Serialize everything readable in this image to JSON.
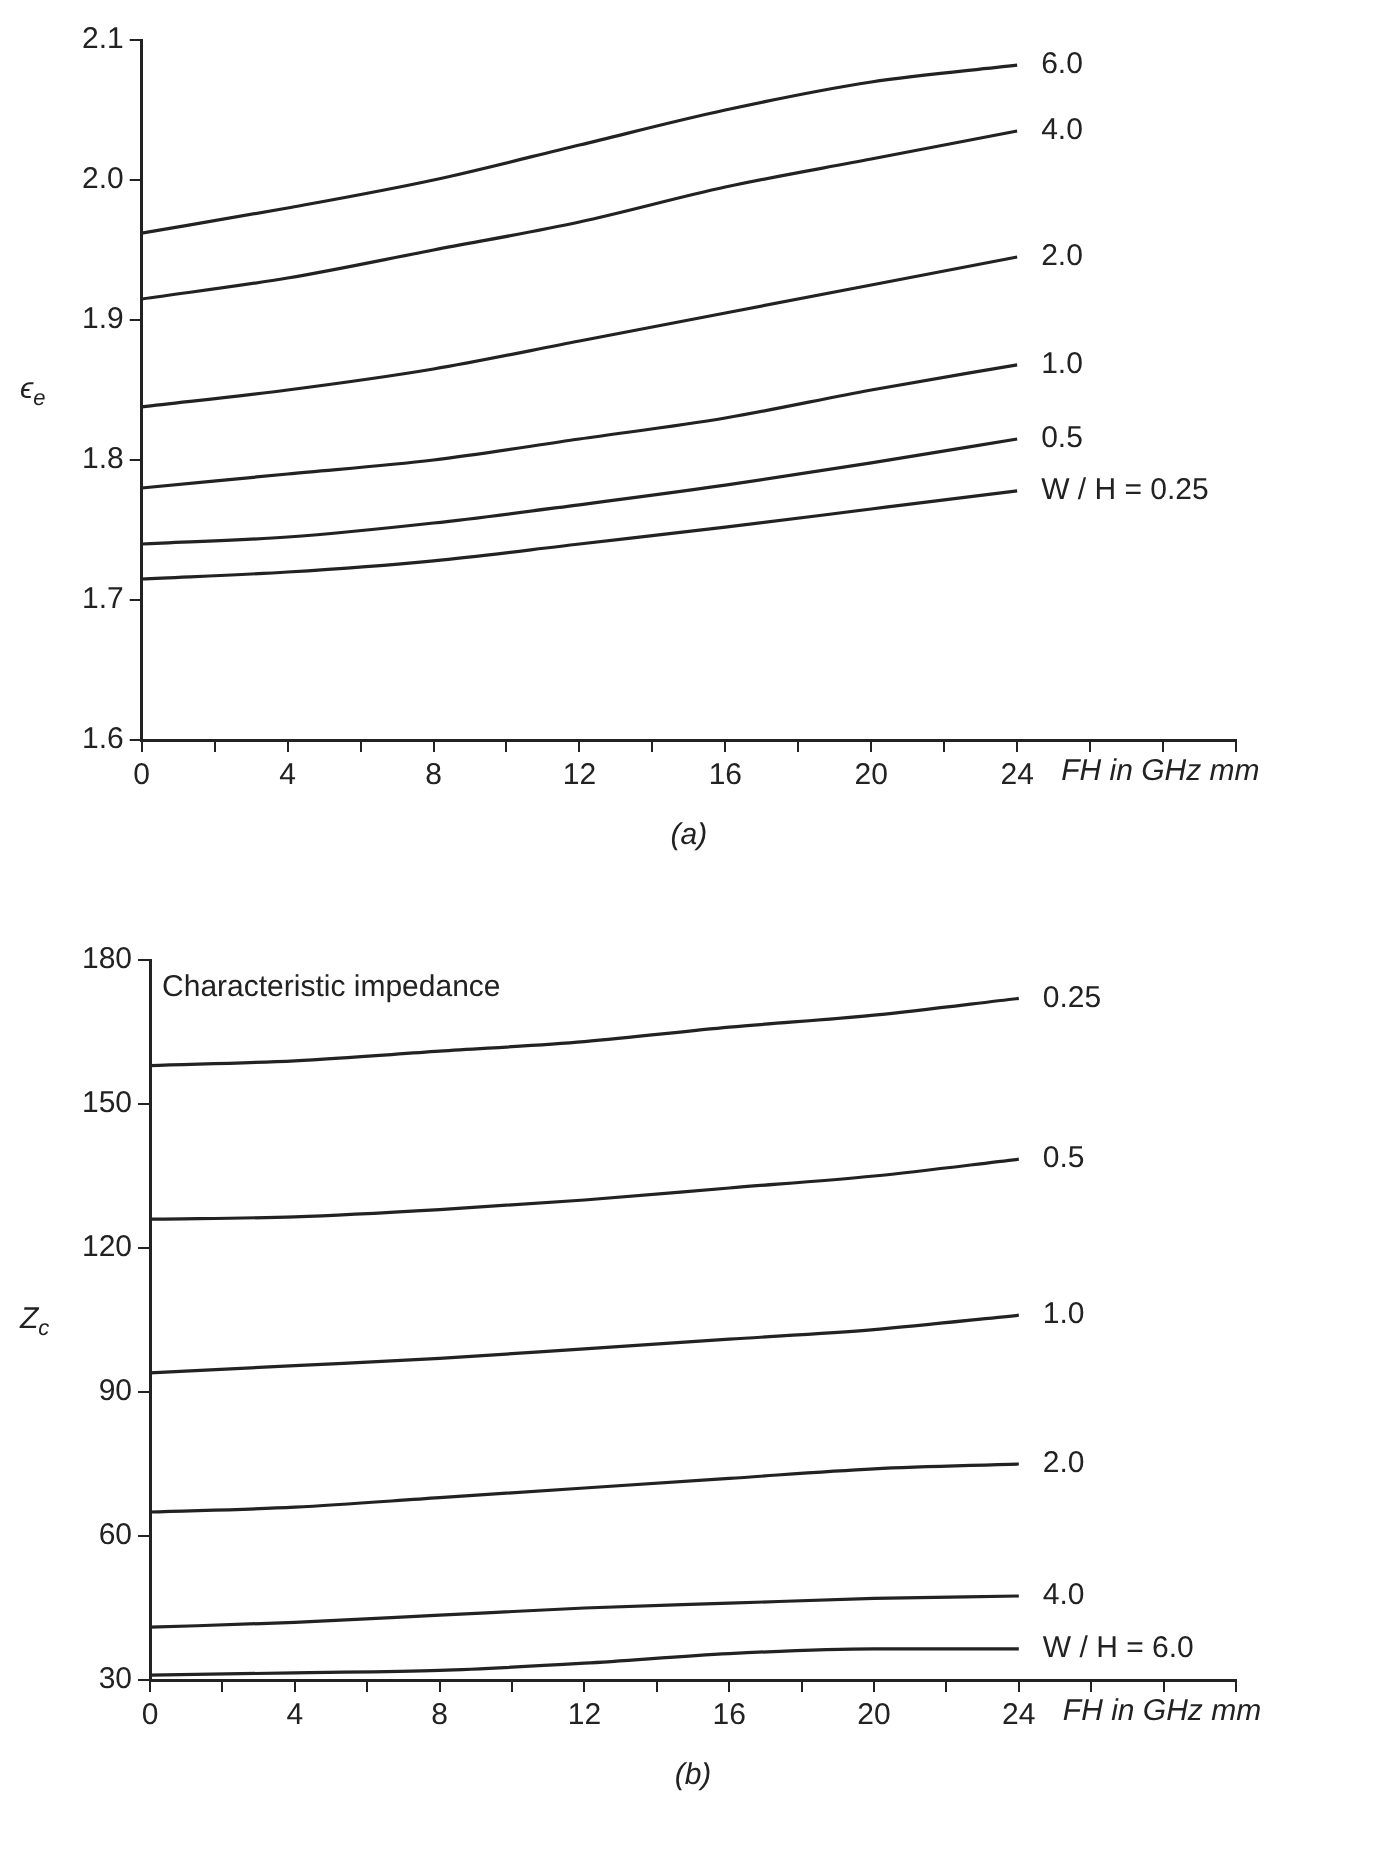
{
  "chart_data": [
    {
      "type": "line",
      "xlabel": "FH in GHz mm",
      "ylabel": "ϵ$_{e}$",
      "annotations": [
        "(a)"
      ],
      "x": [
        0,
        4,
        8,
        12,
        16,
        20,
        24
      ],
      "xlim": [
        0,
        30
      ],
      "xticks": [
        0,
        {
          "value": 2,
          "label": null
        },
        4,
        {
          "value": 6,
          "label": null
        },
        8,
        {
          "value": 10,
          "label": null
        },
        12,
        {
          "value": 14,
          "label": null
        },
        16,
        {
          "value": 18,
          "label": null
        },
        20,
        {
          "value": 22,
          "label": null
        },
        24,
        {
          "value": 26,
          "label": null
        },
        {
          "value": 28,
          "label": null
        },
        {
          "value": 30,
          "label": null
        }
      ],
      "ylim": [
        1.6,
        2.1
      ],
      "yticks": [
        1.6,
        1.7,
        1.8,
        1.9,
        {
          "value": 2,
          "label": "2.0"
        },
        2.1
      ],
      "grid": false,
      "legend": false,
      "series": [
        {
          "name": "6.0",
          "color": "#222222",
          "values": [
            1.962,
            1.98,
            2.0,
            2.025,
            2.05,
            2.07,
            2.082
          ]
        },
        {
          "name": "4.0",
          "color": "#222222",
          "values": [
            1.915,
            1.93,
            1.95,
            1.97,
            1.995,
            2.015,
            2.035
          ]
        },
        {
          "name": "2.0",
          "color": "#222222",
          "values": [
            1.838,
            1.85,
            1.865,
            1.885,
            1.905,
            1.925,
            1.945
          ]
        },
        {
          "name": "1.0",
          "color": "#222222",
          "values": [
            1.78,
            1.79,
            1.8,
            1.815,
            1.83,
            1.85,
            1.868
          ]
        },
        {
          "name": "0.5",
          "color": "#222222",
          "values": [
            1.74,
            1.745,
            1.755,
            1.768,
            1.782,
            1.798,
            1.815
          ]
        },
        {
          "name": "W / H = 0.25",
          "color": "#222222",
          "values": [
            1.715,
            1.72,
            1.728,
            1.74,
            1.752,
            1.765,
            1.778
          ]
        }
      ]
    },
    {
      "type": "line",
      "title": "Characteristic impedance",
      "xlabel": "FH in GHz mm",
      "ylabel": "Z$_{c}$",
      "annotations": [
        "(b)"
      ],
      "x": [
        0,
        4,
        8,
        12,
        16,
        20,
        24
      ],
      "xlim": [
        0,
        30
      ],
      "xticks": [
        0,
        {
          "value": 2,
          "label": null
        },
        4,
        {
          "value": 6,
          "label": null
        },
        8,
        {
          "value": 10,
          "label": null
        },
        12,
        {
          "value": 14,
          "label": null
        },
        16,
        {
          "value": 18,
          "label": null
        },
        20,
        {
          "value": 22,
          "label": null
        },
        24,
        {
          "value": 26,
          "label": null
        },
        {
          "value": 28,
          "label": null
        },
        {
          "value": 30,
          "label": null
        }
      ],
      "ylim": [
        30,
        180
      ],
      "yticks": [
        30,
        60,
        90,
        120,
        150,
        180
      ],
      "grid": false,
      "legend": false,
      "series": [
        {
          "name": "0.25",
          "color": "#222222",
          "values": [
            158,
            159,
            161,
            163,
            166,
            168.5,
            172
          ]
        },
        {
          "name": "0.5",
          "color": "#222222",
          "values": [
            126,
            126.5,
            128,
            130,
            132.5,
            135,
            138.5
          ]
        },
        {
          "name": "1.0",
          "color": "#222222",
          "values": [
            94,
            95.5,
            97,
            99,
            101,
            103,
            106
          ]
        },
        {
          "name": "2.0",
          "color": "#222222",
          "values": [
            65,
            66,
            68,
            70,
            72,
            74,
            75
          ]
        },
        {
          "name": "4.0",
          "color": "#222222",
          "values": [
            41,
            42,
            43.5,
            45,
            46,
            47,
            47.5
          ]
        },
        {
          "name": "W / H = 6.0",
          "color": "#222222",
          "values": [
            31,
            31.5,
            32,
            33.5,
            35.5,
            36.5,
            36.5
          ]
        }
      ]
    }
  ]
}
